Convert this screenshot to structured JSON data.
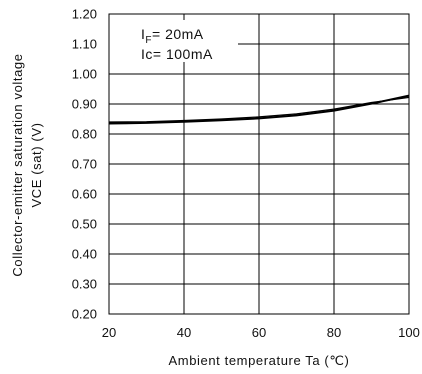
{
  "chart_data": {
    "type": "line",
    "xlabel": "Ambient temperature Ta (℃)",
    "ylabel_line1": "Collector-emitter saturation voltage",
    "ylabel_line2": "VCE (sat) (V)",
    "xlim": [
      20,
      100
    ],
    "ylim": [
      0.2,
      1.2
    ],
    "x_ticks": [
      "20",
      "40",
      "60",
      "80",
      "100"
    ],
    "y_ticks": [
      "0.20",
      "0.30",
      "0.40",
      "0.50",
      "0.60",
      "0.70",
      "0.80",
      "0.90",
      "1.00",
      "1.10",
      "1.20"
    ],
    "grid": true,
    "annotation": {
      "if_label": "I",
      "if_sub": "F",
      "if_value": "= 20mA",
      "ic_label": "Ic= 100mA"
    },
    "series": [
      {
        "x": [
          20,
          30,
          40,
          50,
          60,
          70,
          80,
          90,
          100
        ],
        "y": [
          0.835,
          0.837,
          0.841,
          0.846,
          0.852,
          0.862,
          0.878,
          0.901,
          0.928
        ],
        "color": "#000000"
      },
      {
        "x": [
          20,
          30,
          40,
          50,
          60,
          70,
          80,
          90,
          100
        ],
        "y": [
          0.84,
          0.841,
          0.845,
          0.85,
          0.857,
          0.867,
          0.883,
          0.905,
          0.922
        ],
        "color": "#000000"
      }
    ]
  }
}
